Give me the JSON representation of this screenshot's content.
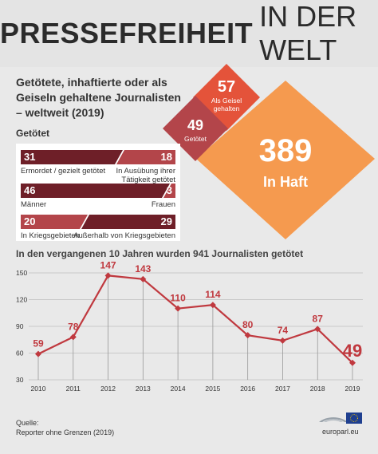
{
  "header": {
    "title_bold": "PRESSEFREIHEIT",
    "title_light": "IN DER WELT"
  },
  "subtitle": "Getötete, inhaftierte oder als Geiseln gehaltene Journalisten – weltweit (2019)",
  "killed_label": "Getötet",
  "diamonds": {
    "prison": {
      "value": "389",
      "label": "In Haft"
    },
    "hostage": {
      "value": "57",
      "label": "Als Geisel gehalten"
    },
    "killed": {
      "value": "49",
      "label": "Getötet"
    }
  },
  "breakdown": [
    {
      "left_value": "31",
      "right_value": "18",
      "left_label": "Ermordet / gezielt getötet",
      "right_label": "In Ausübung ihrer Tätigkeit getötet",
      "left_share": 0.633
    },
    {
      "left_value": "46",
      "right_value": "3",
      "left_label": "Männer",
      "right_label": "Frauen",
      "left_share": 0.939
    },
    {
      "left_value": "20",
      "right_value": "29",
      "left_label": "In Kriegsgebieten",
      "right_label": "Außerhalb von Kriegsgebieten",
      "left_share": 0.408
    }
  ],
  "colors": {
    "dark_red": "#6e1f28",
    "mid_red": "#b3454a",
    "orange": "#f59a4f",
    "orange_red": "#e4533a",
    "line": "#c0393f"
  },
  "chart_data": {
    "type": "line",
    "title": "In den vergangenen 10 Jahren wurden 941 Journalisten getötet",
    "x": [
      "2010",
      "2011",
      "2012",
      "2013",
      "2014",
      "2015",
      "2016",
      "2017",
      "2018",
      "2019"
    ],
    "series": [
      {
        "values": [
          59,
          78,
          147,
          143,
          110,
          114,
          80,
          74,
          87,
          49
        ]
      }
    ],
    "ylim": [
      30,
      150
    ],
    "yticks": [
      30,
      60,
      90,
      120,
      150
    ],
    "grid": "horizontal"
  },
  "source": {
    "label": "Quelle:",
    "text": "Reporter ohne Grenzen (2019)"
  },
  "logo": {
    "text": "europarl.eu"
  }
}
